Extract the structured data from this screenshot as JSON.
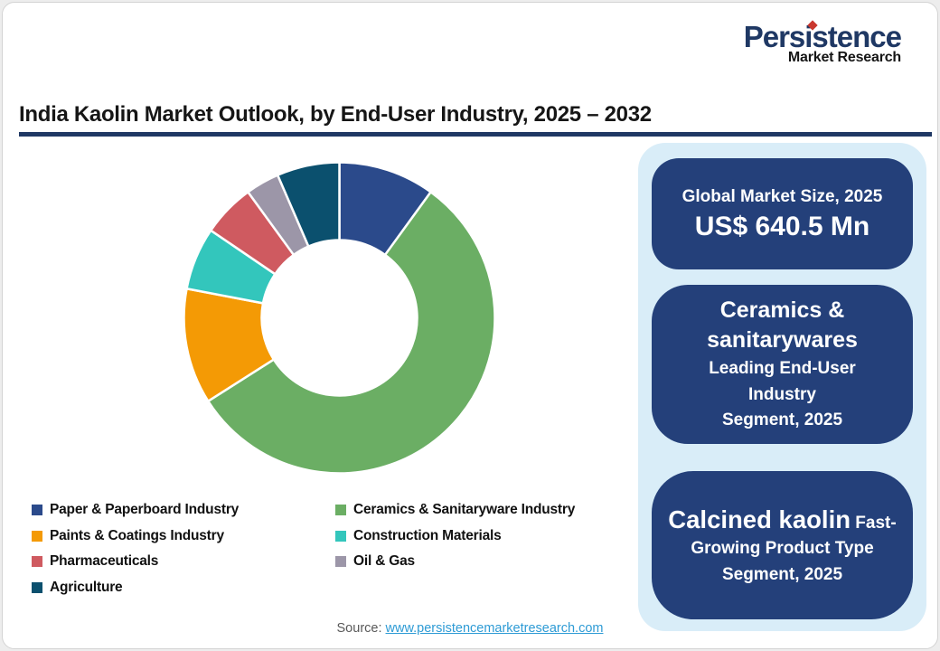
{
  "logo": {
    "brand": "Persistence",
    "subtitle": "Market Research",
    "brand_color": "#1F3864",
    "subtitle_color": "#151515",
    "dot_color": "#C9372E"
  },
  "title": "India Kaolin Market Outlook, by End-User Industry, 2025 – 2032",
  "colors": {
    "accent_navy": "#1F3864",
    "box_navy": "#24407A",
    "panel_light_blue": "#D9EDF8",
    "link_blue": "#2E9BD5",
    "source_gray": "#595959"
  },
  "chart_data": {
    "type": "pie",
    "donut": true,
    "inner_radius_ratio": 0.5,
    "start_angle_deg": 0,
    "direction": "clockwise",
    "legend_position": "bottom-left",
    "values_are_percent_estimates": true,
    "segments": [
      {
        "label": "Paper & Paperboard Industry",
        "value": 10.0,
        "color": "#2B4A8B"
      },
      {
        "label": "Ceramics & Sanitaryware Industry",
        "value": 56.0,
        "color": "#6BAE64"
      },
      {
        "label": "Paints & Coatings Industry",
        "value": 12.0,
        "color": "#F49A05"
      },
      {
        "label": "Construction Materials",
        "value": 6.5,
        "color": "#33C6BC"
      },
      {
        "label": "Pharmaceuticals",
        "value": 5.5,
        "color": "#CF5A60"
      },
      {
        "label": "Oil & Gas",
        "value": 3.5,
        "color": "#9C96A8"
      },
      {
        "label": "Agriculture",
        "value": 6.5,
        "color": "#0B506E"
      }
    ]
  },
  "panel": {
    "boxes": [
      {
        "name": "global-market-size",
        "lines": [
          {
            "parts": [
              {
                "text": "Global Market Size, 2025",
                "size": "md"
              }
            ]
          },
          {
            "parts": [
              {
                "text": "US$ 640.5 Mn",
                "size": "xl"
              }
            ]
          }
        ]
      },
      {
        "name": "leading-end-user-segment",
        "lines": [
          {
            "parts": [
              {
                "text": "Ceramics &",
                "size": "lg"
              }
            ]
          },
          {
            "parts": [
              {
                "text": "sanitarywares",
                "size": "lg"
              }
            ]
          },
          {
            "parts": [
              {
                "text": "Leading End-User",
                "size": "md"
              }
            ]
          },
          {
            "parts": [
              {
                "text": "Industry",
                "size": "md"
              }
            ]
          },
          {
            "parts": [
              {
                "text": "Segment, 2025",
                "size": "md"
              }
            ]
          }
        ]
      },
      {
        "name": "fast-growing-product-type-segment",
        "lines": [
          {
            "parts": [
              {
                "text": "Calcined kaolin",
                "size": "lg2"
              },
              {
                "text": " Fast-",
                "size": "md"
              }
            ]
          },
          {
            "parts": [
              {
                "text": "Growing Product Type",
                "size": "md"
              }
            ]
          },
          {
            "parts": [
              {
                "text": "Segment, 2025",
                "size": "md"
              }
            ]
          }
        ]
      }
    ]
  },
  "source": {
    "label": "Source:",
    "link": "www.persistencemarketresearch.com"
  }
}
